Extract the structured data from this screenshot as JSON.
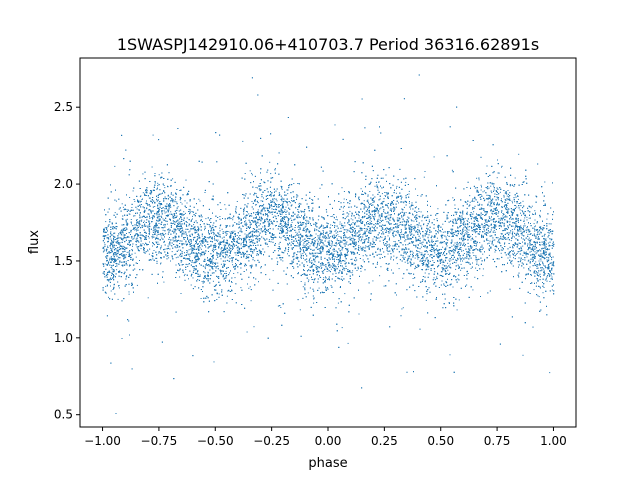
{
  "chart_data": {
    "type": "scatter",
    "title": "1SWASPJ142910.06+410703.7 Period 36316.62891s",
    "xlabel": "phase",
    "ylabel": "flux",
    "xlim": [
      -1.1,
      1.1
    ],
    "ylim": [
      0.42,
      2.82
    ],
    "xticks": [
      -1.0,
      -0.75,
      -0.5,
      -0.25,
      0.0,
      0.25,
      0.5,
      0.75,
      1.0
    ],
    "xtick_labels": [
      "−1.00",
      "−0.75",
      "−0.50",
      "−0.25",
      "0.00",
      "0.25",
      "0.50",
      "0.75",
      "1.00"
    ],
    "yticks": [
      0.5,
      1.0,
      1.5,
      2.0,
      2.5
    ],
    "ytick_labels": [
      "0.5",
      "1.0",
      "1.5",
      "2.0",
      "2.5"
    ],
    "grid": false,
    "point_color": "#1f77b4",
    "model": {
      "description_of_shape": "phase-folded light curve, two cycles per unit phase",
      "mean_flux": 1.66,
      "amplitude": 0.12,
      "cycles_per_unit_phase": 2,
      "peak_phase": 0.25,
      "secondary_depth_asymmetry": 0.02,
      "scatter_sigma": 0.14,
      "outlier_fraction": 0.06,
      "outlier_range": [
        0.5,
        2.8
      ],
      "point_count": 16000,
      "phase_range": [
        -1.0,
        1.0
      ]
    }
  }
}
